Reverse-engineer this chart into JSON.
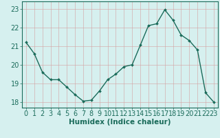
{
  "x": [
    0,
    1,
    2,
    3,
    4,
    5,
    6,
    7,
    8,
    9,
    10,
    11,
    12,
    13,
    14,
    15,
    16,
    17,
    18,
    19,
    20,
    21,
    22,
    23
  ],
  "y": [
    21.2,
    20.6,
    19.6,
    19.2,
    19.2,
    18.8,
    18.4,
    18.05,
    18.1,
    18.6,
    19.2,
    19.5,
    19.9,
    20.0,
    21.05,
    22.1,
    22.2,
    22.95,
    22.4,
    21.6,
    21.3,
    20.8,
    18.5,
    18.0
  ],
  "xlabel": "Humidex (Indice chaleur)",
  "xlim": [
    -0.5,
    23.5
  ],
  "ylim": [
    17.7,
    23.4
  ],
  "yticks": [
    18,
    19,
    20,
    21,
    22,
    23
  ],
  "xticks": [
    0,
    1,
    2,
    3,
    4,
    5,
    6,
    7,
    8,
    9,
    10,
    11,
    12,
    13,
    14,
    15,
    16,
    17,
    18,
    19,
    20,
    21,
    22,
    23
  ],
  "line_color": "#1a6b5a",
  "marker_color": "#1a6b5a",
  "bg_color": "#d6f0ef",
  "grid_color": "#c0dcd8",
  "text_color": "#1a6b5a",
  "xlabel_fontsize": 7.5,
  "tick_fontsize": 7
}
